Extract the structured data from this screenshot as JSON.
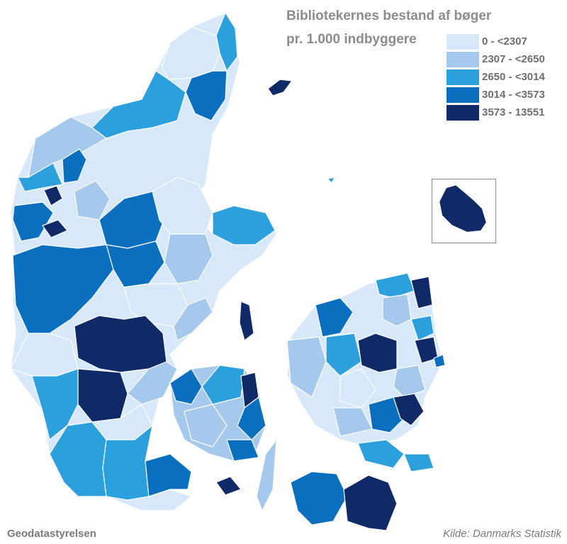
{
  "title_line1": "Bibliotekernes bestand af bøger",
  "title_line2": "pr. 1.000 indbyggere",
  "legend": [
    {
      "label": "0 - <2307",
      "color": "#d6e8fa"
    },
    {
      "label": "2307 - <2650",
      "color": "#a5c9ec"
    },
    {
      "label": "2650 - <3014",
      "color": "#2c9fdd"
    },
    {
      "label": "3014 - <3573",
      "color": "#0b6fc0"
    },
    {
      "label": "3573 - 13551",
      "color": "#0f2a66"
    }
  ],
  "credits": {
    "left": "Geodatastyrelsen",
    "right": "Kilde: Danmarks Statistik"
  }
}
